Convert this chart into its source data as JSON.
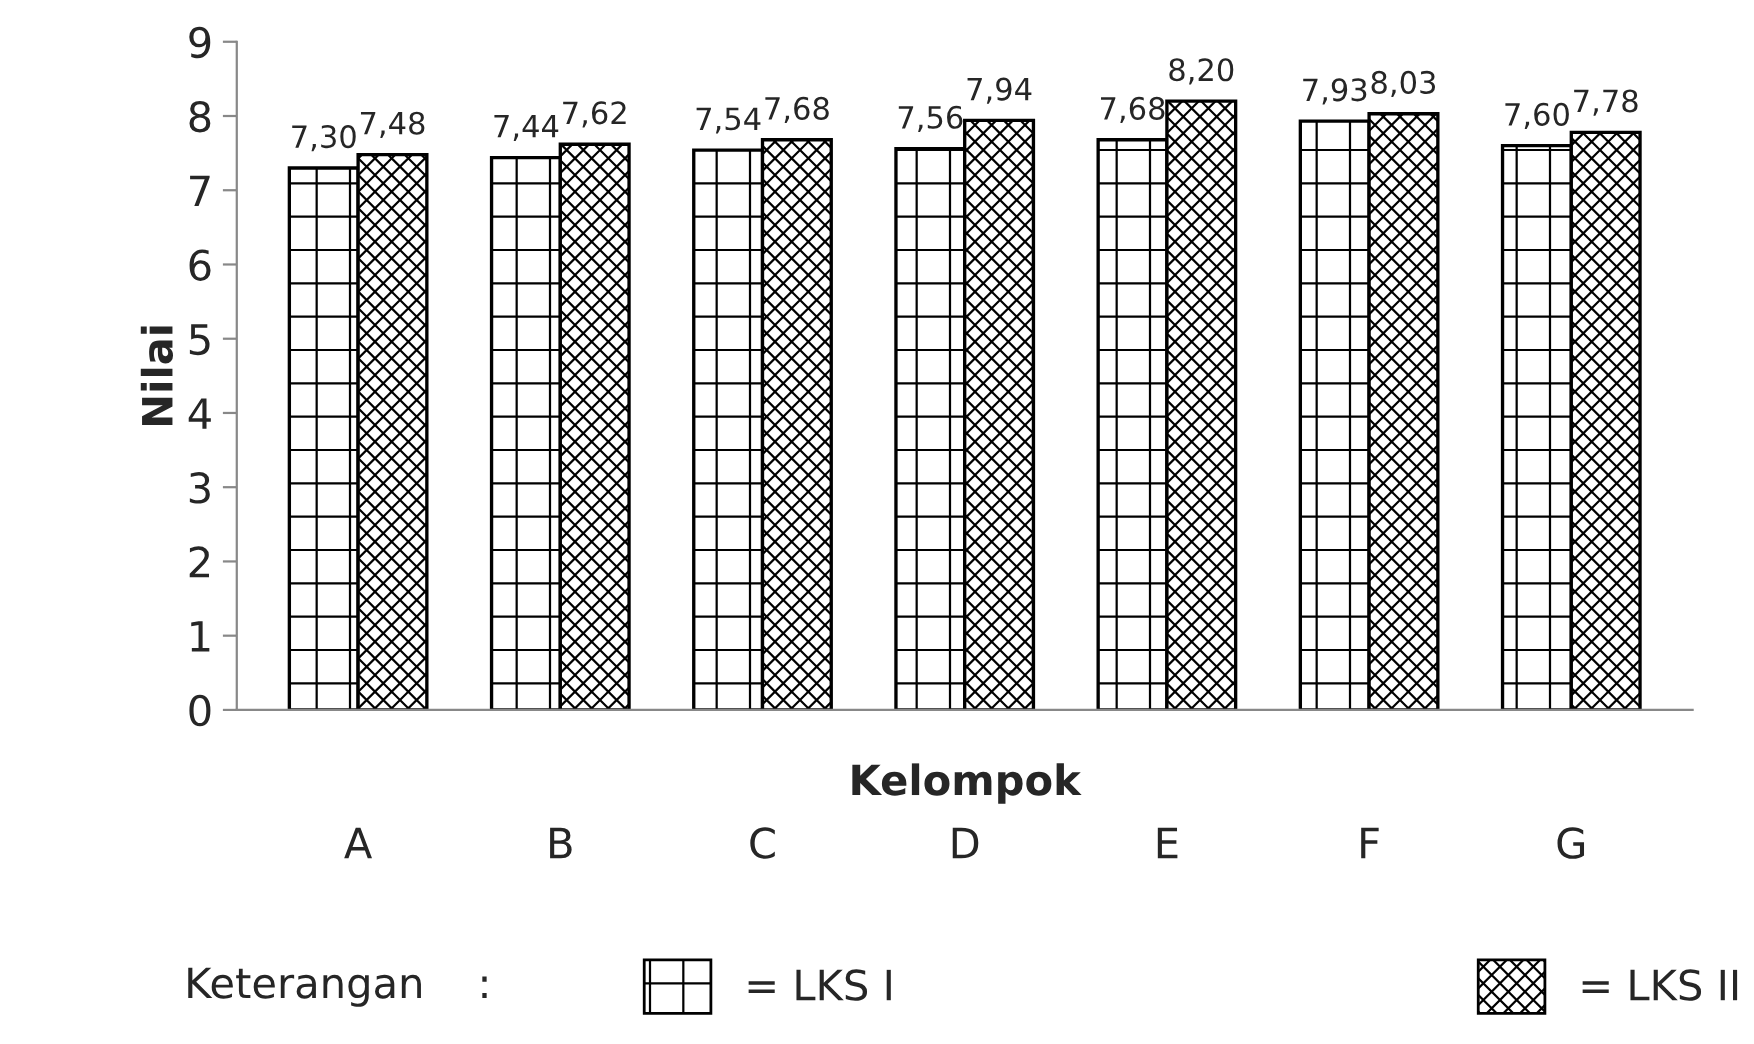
{
  "chart_data": {
    "type": "bar",
    "xlabel": "Kelompok",
    "ylabel": "Nilai",
    "legend_title": "Keterangan    :",
    "categories": [
      "A",
      "B",
      "C",
      "D",
      "E",
      "F",
      "G"
    ],
    "series": [
      {
        "name": "= LKS I",
        "color": "#000000",
        "values": [
          7.3,
          7.44,
          7.54,
          7.56,
          7.68,
          7.93,
          7.6
        ],
        "value_labels": [
          "7,30",
          "7,44",
          "7,54",
          "7,56",
          "7,68",
          "7,93",
          "7,60"
        ]
      },
      {
        "name": "= LKS II",
        "color": "#000000",
        "values": [
          7.48,
          7.62,
          7.68,
          7.94,
          8.2,
          8.03,
          7.78
        ],
        "value_labels": [
          "7,48",
          "7,62",
          "7,68",
          "7,94",
          "8,20",
          "8,03",
          "7,78"
        ]
      }
    ],
    "ylim": [
      0,
      9
    ],
    "yticks": [
      0,
      1,
      2,
      3,
      4,
      5,
      6,
      7,
      8,
      9
    ],
    "grid": false,
    "legend": "bottom"
  }
}
